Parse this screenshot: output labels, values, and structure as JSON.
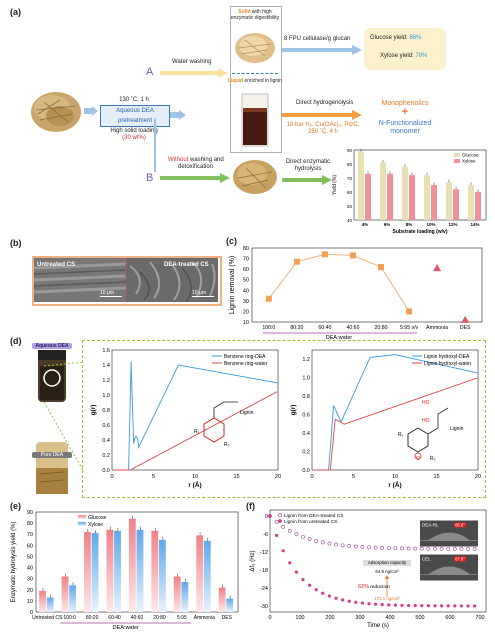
{
  "panels": {
    "a": "(a)",
    "b": "(b)",
    "c": "(c)",
    "d": "(d)",
    "e": "(e)",
    "f": "(f)"
  },
  "a": {
    "pre_cond": "130 ˚C, 1 h",
    "pre_box": "Aqueous DEA pretreatment",
    "loading_text": "High solid loading",
    "loading_val": "(30 wt%)",
    "route_a": "A",
    "route_b": "B",
    "water_wash": "Water washing",
    "solid_t1": "Solid",
    "solid_t2": " with high enzymatic digestibility",
    "liquid_t1": "Liquid",
    "liquid_t2": " enriched in lignin",
    "fpu": "8 FPU cellulase/g glucan",
    "glucose_label": "Glucose yield: ",
    "glucose_val": "86%",
    "xylose_label": "Xylose yield: ",
    "xylose_val": "78%",
    "direct_hydro": "Direct hydrogenolysis",
    "hydro_cond1": "18 bar H₂, Cu(OAc)₂, Pd/C,",
    "hydro_cond2": "250 ˚C, 4 h",
    "mono": "Monophenolics",
    "plus": "+",
    "nfunc1": "N-Functionalized",
    "nfunc2": "monomer",
    "without_word": "Without",
    "without_rest": " washing and",
    "detox": "detoxification",
    "direct_enz1": "Direct enzymatic",
    "direct_enz2": "hydrolysis"
  },
  "a_chart": {
    "type": "bar",
    "categories": [
      "4%",
      "6%",
      "8%",
      "10%",
      "12%",
      "14%"
    ],
    "series": [
      {
        "name": "Glucose",
        "values": [
          89,
          81,
          78,
          72,
          67,
          65
        ]
      },
      {
        "name": "Xylose",
        "values": [
          73,
          73,
          72,
          65,
          62,
          60
        ]
      }
    ],
    "ylabel": "Yield (%)",
    "xlabel": "Substrate loading (w/v)",
    "ylim": [
      40,
      90
    ],
    "yticks": [
      "40",
      "50",
      "60",
      "70",
      "80",
      "90"
    ],
    "colors": [
      "#e8dfb5",
      "#f0909a"
    ]
  },
  "b": {
    "untreated": "Untreated CS",
    "treated": "DEA-treated CS",
    "scale1": "10 µm",
    "scale2": "10 µm"
  },
  "c_chart": {
    "type": "scatter",
    "categories": [
      "100:0",
      "80:20",
      "60:40",
      "40:60",
      "20:80",
      "5:95 v/v",
      "Ammonia",
      "DES"
    ],
    "values": [
      32,
      67,
      74,
      73,
      62,
      20,
      61,
      12
    ],
    "ylabel": "Lignin removal  (%)",
    "xlabel": "DEA:water",
    "ylim": [
      10,
      80
    ],
    "yticks": [
      "10",
      "20",
      "30",
      "40",
      "50",
      "60",
      "70",
      "80"
    ],
    "colors": [
      "#f0a050",
      "#e05560"
    ]
  },
  "d": {
    "aqueous_label": "Aqueous DEA",
    "pure_label": "Pure DEA",
    "left": {
      "series": [
        "Benzene ring-DEA",
        "Benzene ring-water"
      ],
      "xlabel": "r (Å)",
      "ylabel": "g(r)",
      "xticks": [
        "0",
        "5",
        "10",
        "15",
        "20"
      ],
      "yticks": [
        "0.0",
        "0.2",
        "0.4",
        "0.6",
        "0.8",
        "1.0",
        "1.2",
        "1.4",
        "1.6"
      ],
      "lignin": "Lignin",
      "r1": "R₁",
      "r2": "R₂"
    },
    "right": {
      "series": [
        "Lignin hydroxyl-DEA",
        "Lignin hydroxyl-water"
      ],
      "xlabel": "r (Å)",
      "ylabel": "g(r)",
      "xticks": [
        "0",
        "5",
        "10",
        "15",
        "20"
      ],
      "yticks": [
        "0.0",
        "0.2",
        "0.4",
        "0.6",
        "0.8",
        "1.0",
        "1.2"
      ],
      "ho": "HO",
      "lignin": "Lignin",
      "r1": "R₁",
      "r2": "R₂",
      "o": "O"
    }
  },
  "e_chart": {
    "type": "bar",
    "categories": [
      "Untreated CS",
      "100:0",
      "80:20",
      "60:40",
      "40:60",
      "20:80",
      "5:95",
      "Ammonia",
      "DES"
    ],
    "series": [
      {
        "name": "Glucose",
        "values": [
          19,
          32,
          72,
          74,
          84,
          73,
          32,
          69,
          22
        ]
      },
      {
        "name": "Xylose",
        "values": [
          13,
          24,
          71,
          73,
          74,
          65,
          27,
          64,
          12
        ]
      }
    ],
    "ylabel": "Enzymatic hydrolysis yield (%)",
    "xlabel": "DEA:water",
    "ylim": [
      0,
      90
    ],
    "yticks": [
      "0",
      "10",
      "20",
      "30",
      "40",
      "50",
      "60",
      "70",
      "80",
      "90"
    ],
    "colors": [
      "#f5a0a8",
      "#9cc8f2"
    ]
  },
  "f_chart": {
    "type": "scatter",
    "series": [
      "Lignin from DEA-treated CS",
      "Lignin from untreated CS"
    ],
    "xlabel": "Time (s)",
    "ylabel": "Δf₃ (Hz)",
    "xticks": [
      "0",
      "100",
      "200",
      "300",
      "400",
      "500",
      "600",
      "700"
    ],
    "yticks": [
      "0",
      "-6",
      "-12",
      "-18",
      "-24",
      "-30"
    ],
    "xlim": [
      0,
      720
    ],
    "ylim": [
      -32,
      2
    ],
    "treated_plateau": -11,
    "untreated_plateau": -30,
    "adsorption": "Adsorption capacity",
    "val_top": "64.9 ng/cm²",
    "reduction_pct": "62%",
    "reduction_word": " reduction",
    "val_bottom": "171.1 ng/cm²",
    "dea_rl": "DEA-RL",
    "angle1": "66.8°",
    "cel": "CEL",
    "angle2": "67.8°",
    "colors": [
      "#9c3c9c",
      "#d63c8c"
    ]
  }
}
